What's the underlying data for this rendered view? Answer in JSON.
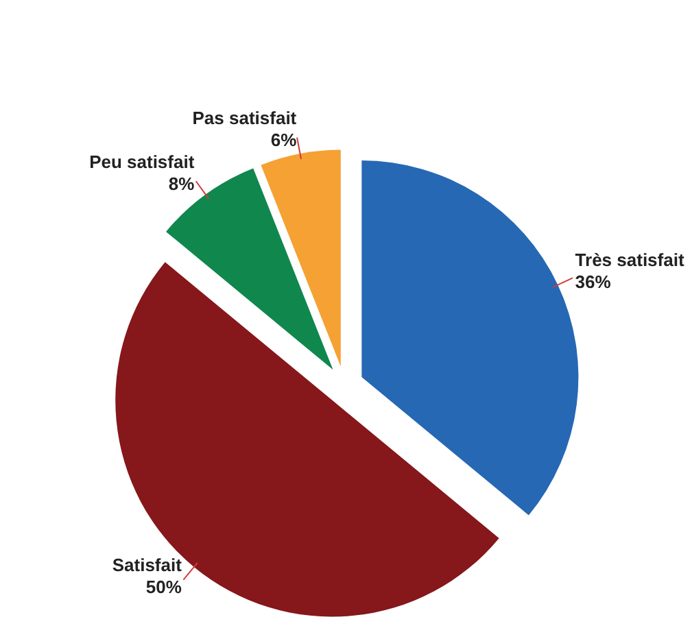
{
  "chart_data": {
    "type": "pie",
    "categories": [
      "Très satisfait",
      "Satisfait",
      "Peu satisfait",
      "Pas satisfait"
    ],
    "values": [
      36,
      50,
      8,
      6
    ],
    "colors": [
      "#2668b3",
      "#86171a",
      "#10874d",
      "#f5a133"
    ],
    "value_labels": [
      "36%",
      "50%",
      "8%",
      "6%"
    ]
  }
}
